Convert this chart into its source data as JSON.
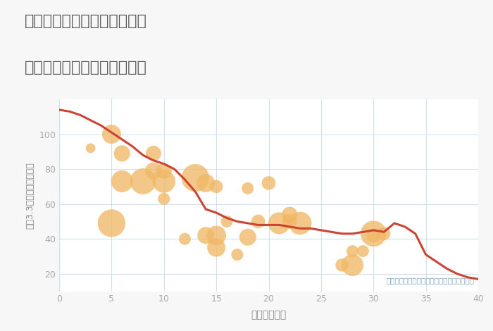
{
  "title_line1": "愛知県稲沢市平和町須ヶ谷の",
  "title_line2": "築年数別中古マンション価格",
  "xlabel": "築年数（年）",
  "ylabel": "坪（3.3㎡）単価（万円）",
  "annotation": "円の大きさは、取引のあった物件面積を示す",
  "xlim": [
    0,
    40
  ],
  "ylim": [
    10,
    120
  ],
  "xticks": [
    0,
    5,
    10,
    15,
    20,
    25,
    30,
    35,
    40
  ],
  "yticks": [
    20,
    40,
    60,
    80,
    100
  ],
  "background_color": "#f7f7f7",
  "plot_bg_color": "#ffffff",
  "line_color": "#cc4433",
  "line_x": [
    0,
    1,
    2,
    3,
    4,
    5,
    6,
    7,
    8,
    9,
    10,
    11,
    12,
    13,
    14,
    15,
    16,
    17,
    18,
    19,
    20,
    21,
    22,
    23,
    24,
    25,
    26,
    27,
    28,
    29,
    30,
    31,
    32,
    33,
    34,
    35,
    36,
    37,
    38,
    39,
    40
  ],
  "line_y": [
    114,
    113,
    111,
    108,
    105,
    101,
    97,
    93,
    88,
    85,
    83,
    80,
    74,
    67,
    57,
    55,
    52,
    50,
    49,
    48,
    48,
    48,
    47,
    46,
    46,
    45,
    44,
    43,
    43,
    44,
    45,
    44,
    49,
    47,
    43,
    31,
    27,
    23,
    20,
    18,
    17
  ],
  "scatter_x": [
    3,
    5,
    5,
    6,
    6,
    8,
    9,
    9,
    10,
    10,
    10,
    12,
    13,
    14,
    14,
    15,
    15,
    15,
    16,
    17,
    18,
    18,
    19,
    20,
    21,
    22,
    22,
    23,
    27,
    28,
    28,
    29,
    30,
    30,
    31
  ],
  "scatter_y": [
    92,
    49,
    100,
    73,
    89,
    73,
    89,
    79,
    73,
    79,
    63,
    40,
    75,
    42,
    72,
    42,
    35,
    70,
    50,
    31,
    41,
    69,
    50,
    72,
    49,
    50,
    54,
    49,
    25,
    25,
    33,
    33,
    43,
    42,
    43
  ],
  "scatter_sizes": [
    100,
    800,
    380,
    500,
    280,
    700,
    250,
    300,
    550,
    250,
    150,
    150,
    800,
    300,
    350,
    400,
    350,
    180,
    150,
    150,
    300,
    150,
    200,
    200,
    500,
    220,
    250,
    550,
    180,
    500,
    150,
    150,
    700,
    200,
    180
  ],
  "scatter_color": "#f0b866",
  "scatter_alpha": 0.78,
  "title_color": "#555555",
  "label_color": "#888888",
  "tick_color": "#aaaaaa",
  "grid_color": "#d0e4f0",
  "annotation_color": "#7fa8c8"
}
